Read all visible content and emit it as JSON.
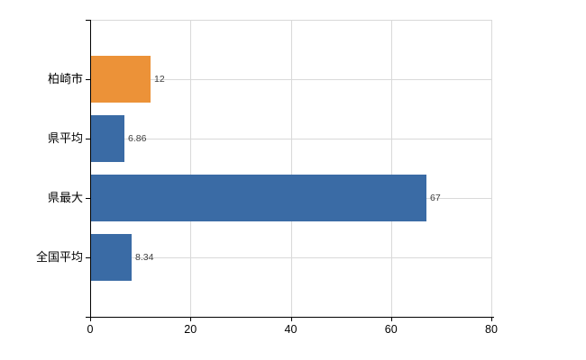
{
  "chart_data": {
    "type": "bar",
    "orientation": "horizontal",
    "title": "",
    "xlabel": "",
    "ylabel": "",
    "categories": [
      "柏崎市",
      "県平均",
      "県最大",
      "全国平均"
    ],
    "values": [
      12,
      6.86,
      67,
      8.34
    ],
    "value_labels": [
      "12",
      "6.86",
      "67",
      "8.34"
    ],
    "series": [
      {
        "name": "",
        "values": [
          12,
          6.86,
          67,
          8.34
        ]
      }
    ],
    "bar_colors": [
      "#ec9238",
      "#3a6ba5",
      "#3a6ba5",
      "#3a6ba5"
    ],
    "highlight_color": "#ec9238",
    "default_bar_color": "#3a6ba5",
    "xlim": [
      0,
      80
    ],
    "x_ticks": [
      0,
      20,
      40,
      60,
      80
    ],
    "x_tick_labels": [
      "0",
      "20",
      "40",
      "60",
      "80"
    ],
    "grid": true,
    "legend": false,
    "background_color": "#ffffff",
    "grid_color": "#d9d9d9",
    "axis_color": "#000000",
    "tick_label_color": "#000000",
    "category_label_color": "#000000",
    "value_label_color": "#404040"
  }
}
